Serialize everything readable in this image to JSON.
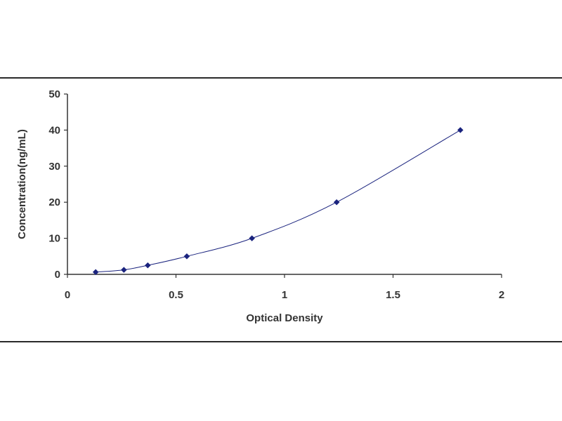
{
  "chart_data": {
    "type": "scatter",
    "title": "",
    "xlabel": "Optical Density",
    "ylabel": "Concentration(ng/mL)",
    "xlim": [
      0,
      2
    ],
    "ylim": [
      0,
      50
    ],
    "x_ticks": [
      0,
      0.5,
      1,
      1.5,
      2
    ],
    "x_tick_labels": [
      "0",
      "0.5",
      "1",
      "1.5",
      "2"
    ],
    "y_ticks": [
      0,
      10,
      20,
      30,
      40,
      50
    ],
    "y_tick_labels": [
      "0",
      "10",
      "20",
      "30",
      "40",
      "50"
    ],
    "grid": false,
    "legend": "none",
    "series": [
      {
        "marker": "diamond",
        "fitted_curve": true,
        "x": [
          0.13,
          0.26,
          0.37,
          0.55,
          0.85,
          1.24,
          1.81
        ],
        "y": [
          0.625,
          1.25,
          2.5,
          5,
          10,
          20,
          40
        ]
      }
    ],
    "colors": {
      "marker": "#1a237e",
      "curve": "#1a237e",
      "axis": "#333333",
      "text": "#333333"
    }
  }
}
